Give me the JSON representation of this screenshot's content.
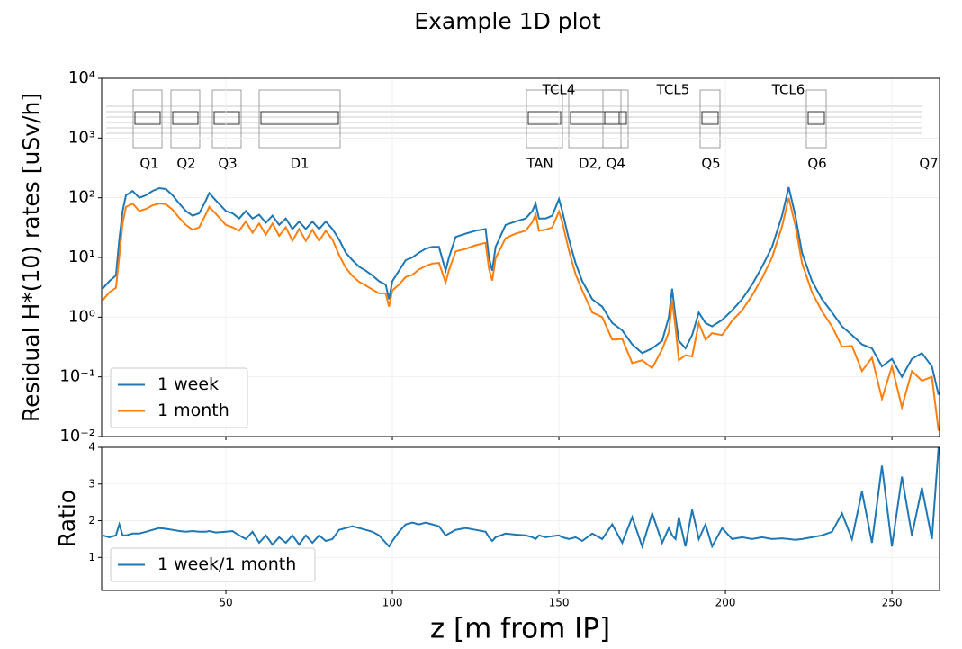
{
  "chart_data": [
    {
      "type": "line",
      "title": "Example 1D plot",
      "ylabel": "Residual H*(10) rates [uSv/h]",
      "log_y": true,
      "grid": true,
      "legend": "lower left",
      "annotations": [
        "Q1",
        "Q2",
        "Q3",
        "D1",
        "TAN",
        "D2, Q4",
        "Q5",
        "Q6",
        "Q7",
        "TCL4",
        "TCL5",
        "TCL6"
      ],
      "x": [
        13,
        15,
        17,
        18,
        19,
        20,
        22,
        24,
        26,
        28,
        30,
        32,
        34,
        36,
        38,
        40,
        42,
        44,
        45,
        47,
        50,
        52,
        54,
        56,
        58,
        60,
        62,
        64,
        66,
        68,
        70,
        72,
        74,
        76,
        78,
        80,
        82,
        84,
        86,
        88,
        90,
        92,
        94,
        96,
        98,
        99,
        100,
        102,
        104,
        106,
        108,
        110,
        112,
        114,
        116,
        117,
        119,
        122,
        125,
        128,
        129,
        130,
        131,
        134,
        137,
        140,
        142,
        143,
        144,
        146,
        148,
        150,
        151,
        153,
        155,
        157,
        160,
        163,
        166,
        169,
        172,
        175,
        178,
        181,
        183,
        184,
        185,
        186,
        188,
        190,
        192,
        194,
        196,
        199,
        202,
        205,
        208,
        211,
        214,
        217,
        219,
        221,
        223,
        226,
        229,
        232,
        235,
        238,
        241,
        244,
        247,
        250,
        253,
        256,
        259,
        262,
        264
      ],
      "series": [
        {
          "name": "1 week",
          "color": "#1f77b4",
          "values": [
            3,
            4,
            5,
            20,
            60,
            110,
            130,
            100,
            110,
            130,
            145,
            140,
            110,
            80,
            60,
            50,
            55,
            90,
            120,
            90,
            60,
            55,
            45,
            60,
            45,
            52,
            38,
            50,
            35,
            45,
            30,
            40,
            30,
            40,
            30,
            40,
            30,
            20,
            12,
            9,
            7,
            6,
            5,
            4,
            3.5,
            2,
            4,
            6,
            9,
            10,
            12,
            14,
            15,
            15,
            6,
            10,
            22,
            25,
            28,
            30,
            10,
            6,
            15,
            35,
            40,
            45,
            60,
            80,
            45,
            45,
            50,
            95,
            60,
            20,
            8,
            4,
            2,
            1.5,
            0.8,
            0.6,
            0.35,
            0.25,
            0.3,
            0.4,
            1.0,
            3,
            1.0,
            0.4,
            0.3,
            0.5,
            1.2,
            0.8,
            0.7,
            0.9,
            1.3,
            2,
            3.5,
            7,
            15,
            50,
            150,
            50,
            12,
            4,
            2,
            1.2,
            0.7,
            0.5,
            0.35,
            0.3,
            0.15,
            0.2,
            0.1,
            0.2,
            0.25,
            0.15,
            0.05
          ]
        },
        {
          "name": "1 month",
          "color": "#ff7f0e",
          "values": [
            1.9,
            2.6,
            3.1,
            10.5,
            37,
            70,
            80,
            60,
            65,
            75,
            80,
            78,
            63,
            46,
            35,
            29,
            32,
            53,
            70,
            54,
            35,
            32,
            28,
            40,
            26,
            37,
            24,
            37,
            23,
            32,
            19,
            30,
            19,
            29,
            19,
            28,
            20,
            11,
            6.7,
            4.9,
            3.9,
            3.4,
            2.9,
            2.5,
            2.5,
            1.5,
            2.8,
            3.5,
            4.7,
            5.1,
            6.3,
            7.2,
            7.9,
            8.1,
            3.8,
            6.1,
            12.6,
            13.9,
            16,
            17.6,
            6.5,
            4.1,
            9.7,
            21,
            25,
            28,
            39,
            53,
            28,
            29,
            32,
            59,
            39,
            13,
            5.2,
            2.8,
            1.2,
            1.0,
            0.42,
            0.43,
            0.17,
            0.19,
            0.14,
            0.29,
            0.56,
            1.9,
            0.67,
            0.19,
            0.23,
            0.22,
            0.8,
            0.42,
            0.54,
            0.5,
            0.87,
            1.3,
            2.3,
            4.5,
            10,
            33,
            100,
            34,
            8,
            2.6,
            1.25,
            0.7,
            0.32,
            0.33,
            0.125,
            0.21,
            0.043,
            0.15,
            0.031,
            0.125,
            0.086,
            0.1,
            0.0125
          ]
        }
      ],
      "xlim": [
        12.7,
        264.3
      ],
      "ylim": [
        0.01,
        10000
      ],
      "yticks": [
        {
          "value": 0.01,
          "label": "10⁻²"
        },
        {
          "value": 0.1,
          "label": "10⁻¹"
        },
        {
          "value": 1,
          "label": "10⁰"
        },
        {
          "value": 10,
          "label": "10¹"
        },
        {
          "value": 100,
          "label": "10²"
        },
        {
          "value": 1000,
          "label": "10³"
        },
        {
          "value": 10000,
          "label": "10⁴"
        }
      ]
    },
    {
      "type": "line",
      "xlabel": "z [m from IP]",
      "ylabel": "Ratio",
      "grid": true,
      "legend": "lower left",
      "x": [
        13,
        15,
        17,
        18,
        19,
        20,
        22,
        24,
        26,
        28,
        30,
        32,
        34,
        36,
        38,
        40,
        42,
        44,
        45,
        47,
        50,
        52,
        54,
        56,
        58,
        60,
        62,
        64,
        66,
        68,
        70,
        72,
        74,
        76,
        78,
        80,
        82,
        84,
        86,
        88,
        90,
        92,
        94,
        96,
        98,
        99,
        100,
        102,
        104,
        106,
        108,
        110,
        112,
        114,
        116,
        117,
        119,
        122,
        125,
        128,
        129,
        130,
        131,
        134,
        137,
        140,
        142,
        143,
        144,
        146,
        148,
        150,
        151,
        153,
        155,
        157,
        160,
        163,
        166,
        169,
        172,
        175,
        178,
        181,
        183,
        184,
        185,
        186,
        188,
        190,
        192,
        194,
        196,
        199,
        202,
        205,
        208,
        211,
        214,
        217,
        219,
        221,
        223,
        226,
        229,
        232,
        235,
        238,
        241,
        244,
        247,
        250,
        253,
        256,
        259,
        262,
        264
      ],
      "series": [
        {
          "name": "1 week/1 month",
          "color": "#1f77b4",
          "values": [
            1.6,
            1.55,
            1.6,
            1.9,
            1.6,
            1.6,
            1.65,
            1.65,
            1.7,
            1.75,
            1.8,
            1.78,
            1.75,
            1.72,
            1.7,
            1.72,
            1.7,
            1.7,
            1.72,
            1.68,
            1.7,
            1.72,
            1.6,
            1.5,
            1.7,
            1.4,
            1.6,
            1.35,
            1.55,
            1.4,
            1.6,
            1.35,
            1.6,
            1.4,
            1.6,
            1.45,
            1.5,
            1.75,
            1.8,
            1.85,
            1.8,
            1.75,
            1.7,
            1.6,
            1.4,
            1.3,
            1.45,
            1.7,
            1.9,
            1.95,
            1.9,
            1.95,
            1.9,
            1.85,
            1.6,
            1.65,
            1.75,
            1.8,
            1.75,
            1.7,
            1.55,
            1.45,
            1.55,
            1.65,
            1.62,
            1.6,
            1.55,
            1.5,
            1.6,
            1.55,
            1.58,
            1.6,
            1.55,
            1.5,
            1.55,
            1.45,
            1.65,
            1.5,
            1.9,
            1.4,
            2.1,
            1.3,
            2.2,
            1.4,
            1.8,
            1.6,
            1.5,
            2.1,
            1.3,
            2.3,
            1.5,
            1.9,
            1.3,
            1.8,
            1.5,
            1.55,
            1.5,
            1.55,
            1.5,
            1.52,
            1.5,
            1.48,
            1.5,
            1.55,
            1.6,
            1.7,
            2.2,
            1.5,
            2.8,
            1.4,
            3.5,
            1.3,
            3.2,
            1.6,
            2.9,
            1.5,
            4
          ]
        }
      ],
      "xlim": [
        12.7,
        264.3
      ],
      "ylim": [
        0.1,
        4
      ],
      "xticks": [
        50,
        100,
        150,
        200,
        250
      ],
      "yticks": [
        1,
        2,
        3,
        4
      ]
    }
  ]
}
